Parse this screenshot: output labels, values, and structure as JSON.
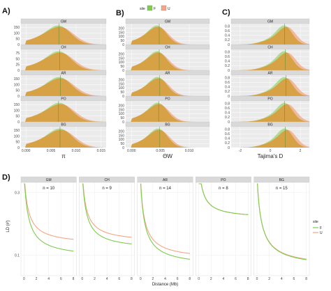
{
  "figure": {
    "panel_letters": [
      "A)",
      "B)",
      "C)",
      "D)"
    ],
    "legend": {
      "title": "site",
      "entries": [
        {
          "label": "F",
          "color": "#7CCD4A"
        },
        {
          "label": "U",
          "color": "#F4A582"
        }
      ],
      "overlap_color": "#D6A245"
    }
  },
  "chart_data": [
    {
      "type": "area",
      "id": "A",
      "xlabel": "π",
      "ylabel": "",
      "xlim": [
        -0.001,
        0.016
      ],
      "xticks": [
        0.0,
        0.005,
        0.01,
        0.015
      ],
      "xtick_labels": [
        "0.000",
        "0.005",
        "0.010",
        "0.015"
      ],
      "ylim": [
        0,
        170
      ],
      "yticks": [
        0,
        50,
        100,
        150
      ],
      "yticks_by_pop": {
        "GM": [
          0,
          50,
          100,
          150
        ],
        "CH": [
          0,
          25,
          50,
          75
        ],
        "AR": [
          0,
          50,
          100,
          150
        ],
        "PO": [
          0,
          50,
          100,
          150
        ],
        "BG": [
          0,
          50,
          100,
          150
        ]
      },
      "facets": [
        "GM",
        "CH",
        "AR",
        "PO",
        "BG"
      ],
      "vline": [
        0.0066,
        0.0067,
        0.0069,
        0.0065,
        0.0068
      ],
      "distribution": {
        "F": {
          "mode": 0.0069,
          "sd": 0.0023
        },
        "U": {
          "mode": 0.0072,
          "sd": 0.0026
        }
      }
    },
    {
      "type": "area",
      "id": "B",
      "xlabel": "ΘW",
      "ylabel": "",
      "xlim": [
        -0.001,
        0.0135
      ],
      "xticks": [
        0.0,
        0.005,
        0.01
      ],
      "xtick_labels": [
        "0.000",
        "0.005",
        "0.010"
      ],
      "ylim": [
        0,
        240
      ],
      "yticks": [
        0,
        50,
        100,
        150,
        200
      ],
      "facets": [
        "GM",
        "CH",
        "AR",
        "PO",
        "BG"
      ],
      "vline": [
        0.0048,
        0.0048,
        0.0049,
        0.0047,
        0.0049
      ],
      "distribution": {
        "F": {
          "mode": 0.0047,
          "sd": 0.0015
        },
        "U": {
          "mode": 0.0049,
          "sd": 0.0017
        }
      }
    },
    {
      "type": "area",
      "id": "C",
      "xlabel": "Tajima's D",
      "ylabel": "",
      "xlim": [
        -2.6,
        2.6
      ],
      "xticks": [
        -2,
        0,
        2
      ],
      "xtick_labels": [
        "-2",
        "0",
        "2"
      ],
      "ylim": [
        0,
        0.85
      ],
      "yticks": [
        0,
        0.2,
        0.4,
        0.6,
        0.8
      ],
      "facets": [
        "GM",
        "CH",
        "AR",
        "PO",
        "BG"
      ],
      "vline": [
        0.95,
        1.0,
        1.05,
        0.95,
        1.0
      ],
      "distribution": {
        "F": {
          "mode": 1.0,
          "sd": 0.5
        },
        "U": {
          "mode": 1.2,
          "sd": 0.55
        }
      }
    },
    {
      "type": "line",
      "id": "D",
      "xlabel": "Distance (Mb)",
      "ylabel": "LD (r²)",
      "xlim": [
        -0.5,
        8.5
      ],
      "xticks": [
        0,
        2,
        4,
        6,
        8
      ],
      "xtick_labels": [
        "0",
        "2",
        "4",
        "6",
        "8"
      ],
      "ylog": true,
      "ylim": [
        0.07,
        0.35
      ],
      "yticks": [
        0.1,
        0.3
      ],
      "ytick_labels": [
        "0.1",
        "0.3"
      ],
      "facets": [
        {
          "name": "GM",
          "n_label": "n = 10",
          "F": {
            "r0": 0.27,
            "rinf": 0.095
          },
          "U": {
            "r0": 0.28,
            "rinf": 0.12
          }
        },
        {
          "name": "CH",
          "n_label": "n = 9",
          "F": {
            "r0": 0.27,
            "rinf": 0.11
          },
          "U": {
            "r0": 0.28,
            "rinf": 0.125
          }
        },
        {
          "name": "AR",
          "n_label": "n = 14",
          "F": {
            "r0": 0.24,
            "rinf": 0.082
          },
          "U": {
            "r0": 0.245,
            "rinf": 0.092
          }
        },
        {
          "name": "PO",
          "n_label": "n = 8",
          "F": {
            "r0": 0.35,
            "rinf": 0.19
          },
          "U": {
            "r0": 0.35,
            "rinf": 0.19
          }
        },
        {
          "name": "BG",
          "n_label": "n = 15",
          "F": {
            "r0": 0.26,
            "rinf": 0.08
          },
          "U": {
            "r0": 0.26,
            "rinf": 0.081
          }
        }
      ]
    }
  ]
}
